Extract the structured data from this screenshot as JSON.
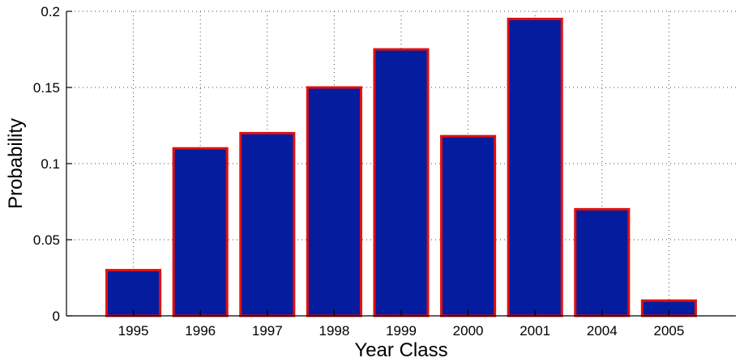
{
  "chart_data": {
    "type": "bar",
    "title": "",
    "xlabel": "Year Class",
    "ylabel": "Probability",
    "categories": [
      "1995",
      "1996",
      "1997",
      "1998",
      "1999",
      "2000",
      "2001",
      "2004",
      "2005"
    ],
    "values": [
      0.03,
      0.11,
      0.12,
      0.15,
      0.175,
      0.118,
      0.195,
      0.07,
      0.01
    ],
    "ylim": [
      0,
      0.2
    ],
    "yticks": [
      0,
      0.05,
      0.1,
      0.15,
      0.2
    ],
    "ytick_labels": [
      "0",
      "0.05",
      "0.1",
      "0.15",
      "0.2"
    ],
    "grid": true,
    "bar_fill_color": "#061c9e",
    "bar_edge_color": "#e01010"
  }
}
